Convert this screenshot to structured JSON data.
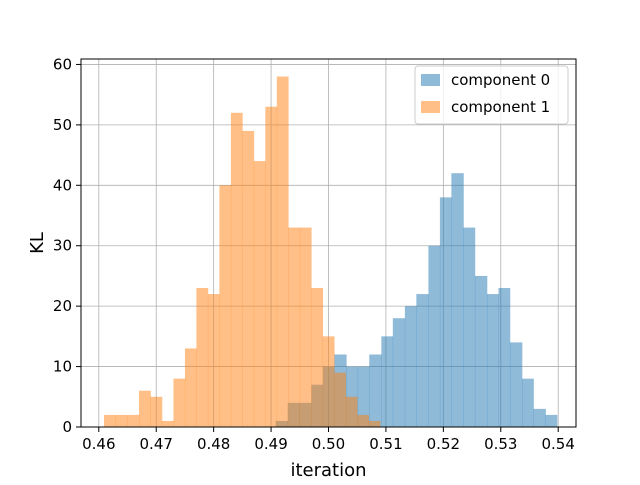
{
  "chart_data": {
    "type": "histogram",
    "title": "",
    "xlabel": "iteration",
    "ylabel": "KL",
    "xlim": [
      0.4569,
      0.5431
    ],
    "ylim": [
      0,
      60.9
    ],
    "xticks": [
      "0.46",
      "0.47",
      "0.48",
      "0.49",
      "0.50",
      "0.51",
      "0.52",
      "0.53",
      "0.54"
    ],
    "yticks": [
      "0",
      "10",
      "20",
      "30",
      "40",
      "50",
      "60"
    ],
    "grid": true,
    "legend_position": "upper right",
    "series": [
      {
        "name": "component 0",
        "color": "#1f77b4",
        "opacity": 0.5,
        "bins": [
          [
            0.4908,
            0.4929,
            1
          ],
          [
            0.4929,
            0.4949,
            4
          ],
          [
            0.4949,
            0.497,
            4
          ],
          [
            0.497,
            0.499,
            7
          ],
          [
            0.499,
            0.501,
            10
          ],
          [
            0.501,
            0.5031,
            12
          ],
          [
            0.5031,
            0.5051,
            10
          ],
          [
            0.5051,
            0.5071,
            10
          ],
          [
            0.5071,
            0.5092,
            12
          ],
          [
            0.5092,
            0.5112,
            15
          ],
          [
            0.5112,
            0.5133,
            18
          ],
          [
            0.5133,
            0.5153,
            20
          ],
          [
            0.5153,
            0.5174,
            22
          ],
          [
            0.5174,
            0.5194,
            30
          ],
          [
            0.5194,
            0.5214,
            38
          ],
          [
            0.5214,
            0.5235,
            42
          ],
          [
            0.5235,
            0.5255,
            33
          ],
          [
            0.5255,
            0.5276,
            25
          ],
          [
            0.5276,
            0.5296,
            22
          ],
          [
            0.5296,
            0.5316,
            23
          ],
          [
            0.5316,
            0.5337,
            14
          ],
          [
            0.5337,
            0.5357,
            8
          ],
          [
            0.5357,
            0.5378,
            3
          ],
          [
            0.5378,
            0.5398,
            2
          ]
        ],
        "note_values": [
          1,
          4,
          4,
          7,
          10,
          12,
          10,
          10,
          12,
          15,
          18,
          20,
          22,
          30,
          38,
          42,
          33,
          25,
          22,
          23,
          14,
          8,
          3,
          2
        ]
      },
      {
        "name": "component 1",
        "color": "#ff7f0e",
        "opacity": 0.5,
        "bins": [
          [
            0.4609,
            0.4629,
            2
          ],
          [
            0.4629,
            0.465,
            2
          ],
          [
            0.465,
            0.467,
            2
          ],
          [
            0.467,
            0.469,
            6
          ],
          [
            0.469,
            0.471,
            5
          ],
          [
            0.471,
            0.473,
            1
          ],
          [
            0.473,
            0.475,
            8
          ],
          [
            0.475,
            0.477,
            13
          ],
          [
            0.477,
            0.479,
            23
          ],
          [
            0.479,
            0.481,
            22
          ],
          [
            0.481,
            0.483,
            40
          ],
          [
            0.483,
            0.485,
            52
          ],
          [
            0.485,
            0.487,
            49
          ],
          [
            0.487,
            0.489,
            44
          ],
          [
            0.489,
            0.491,
            53
          ],
          [
            0.491,
            0.493,
            58
          ],
          [
            0.493,
            0.495,
            33
          ],
          [
            0.495,
            0.497,
            33
          ],
          [
            0.497,
            0.499,
            23
          ],
          [
            0.499,
            0.501,
            15
          ],
          [
            0.501,
            0.503,
            9
          ],
          [
            0.503,
            0.505,
            5
          ],
          [
            0.505,
            0.507,
            2
          ],
          [
            0.507,
            0.509,
            1
          ]
        ]
      }
    ]
  }
}
